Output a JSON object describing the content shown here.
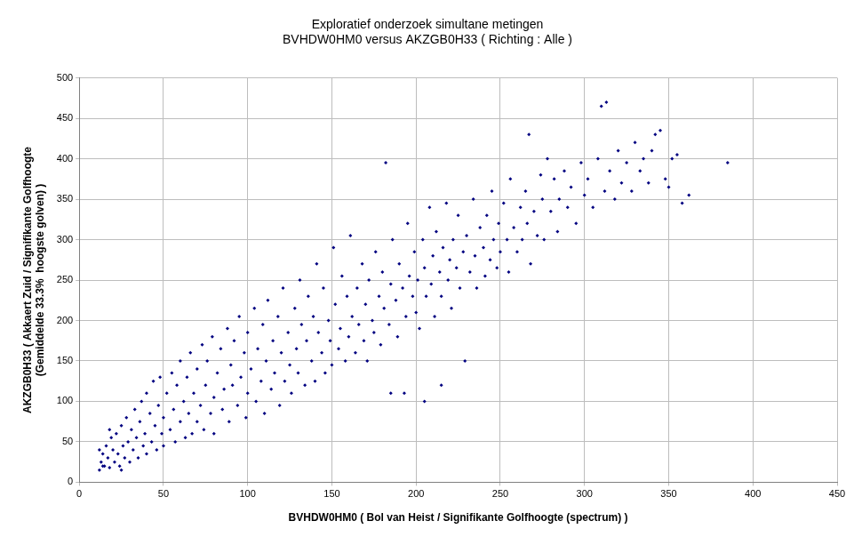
{
  "chart_data": {
    "type": "scatter",
    "title": [
      "Exploratief onderzoek simultane metingen",
      "BVHDW0HM0 versus AKZGB0H33 ( Richting : Alle )"
    ],
    "x_label": "BVHDW0HM0 ( Bol van Heist / Signifikante Golfhoogte (spectrum) )",
    "y_label": [
      "AKZGB0H33 ( Akkaert Zuid / Signifikante Golfhoogte",
      "(Gemiddelde 33.3%  hoogste golven) )"
    ],
    "x": [
      12,
      13,
      14,
      15,
      16,
      17,
      18,
      19,
      20,
      21,
      22,
      23,
      24,
      25,
      26,
      27,
      28,
      29,
      30,
      31,
      32,
      33,
      34,
      35,
      36,
      37,
      38,
      39,
      40,
      40,
      42,
      43,
      44,
      45,
      46,
      47,
      48,
      49,
      50,
      50,
      52,
      54,
      55,
      56,
      57,
      58,
      60,
      60,
      62,
      63,
      64,
      65,
      66,
      67,
      68,
      70,
      70,
      72,
      73,
      74,
      75,
      76,
      78,
      79,
      80,
      80,
      82,
      84,
      85,
      86,
      88,
      89,
      90,
      91,
      92,
      94,
      95,
      96,
      98,
      99,
      100,
      100,
      102,
      104,
      105,
      106,
      108,
      109,
      110,
      111,
      112,
      114,
      115,
      116,
      118,
      119,
      120,
      121,
      122,
      124,
      125,
      126,
      128,
      129,
      130,
      131,
      132,
      134,
      135,
      136,
      138,
      139,
      140,
      141,
      142,
      144,
      145,
      146,
      148,
      149,
      150,
      151,
      152,
      154,
      155,
      156,
      158,
      159,
      160,
      161,
      162,
      164,
      165,
      166,
      168,
      169,
      170,
      171,
      172,
      174,
      175,
      176,
      178,
      179,
      180,
      181,
      182,
      184,
      185,
      186,
      188,
      189,
      190,
      192,
      193,
      194,
      195,
      196,
      198,
      199,
      200,
      201,
      202,
      204,
      205,
      206,
      208,
      209,
      210,
      211,
      212,
      214,
      215,
      216,
      218,
      219,
      220,
      221,
      222,
      224,
      225,
      226,
      228,
      229,
      230,
      232,
      234,
      235,
      236,
      238,
      240,
      241,
      242,
      244,
      245,
      246,
      248,
      249,
      250,
      252,
      254,
      255,
      256,
      258,
      260,
      262,
      263,
      265,
      266,
      267,
      268,
      270,
      272,
      274,
      275,
      276,
      278,
      280,
      282,
      284,
      285,
      288,
      290,
      292,
      295,
      298,
      300,
      302,
      305,
      308,
      310,
      312,
      313,
      315,
      318,
      320,
      322,
      325,
      328,
      330,
      333,
      335,
      338,
      340,
      342,
      345,
      348,
      350,
      352,
      355,
      358,
      362,
      385,
      185,
      205,
      215,
      12,
      14,
      18,
      25
    ],
    "values": [
      15,
      25,
      35,
      20,
      45,
      30,
      18,
      55,
      40,
      25,
      60,
      35,
      20,
      70,
      45,
      30,
      80,
      50,
      25,
      65,
      40,
      90,
      55,
      30,
      75,
      100,
      45,
      60,
      35,
      110,
      85,
      50,
      125,
      70,
      40,
      95,
      130,
      60,
      80,
      45,
      110,
      65,
      135,
      90,
      50,
      120,
      75,
      150,
      100,
      55,
      130,
      85,
      160,
      60,
      110,
      140,
      75,
      95,
      170,
      65,
      120,
      150,
      85,
      180,
      105,
      60,
      135,
      165,
      90,
      115,
      190,
      75,
      145,
      120,
      175,
      95,
      205,
      130,
      160,
      80,
      110,
      185,
      140,
      215,
      100,
      165,
      125,
      195,
      85,
      150,
      225,
      115,
      175,
      135,
      205,
      95,
      160,
      240,
      125,
      185,
      145,
      110,
      215,
      165,
      135,
      250,
      195,
      120,
      175,
      230,
      150,
      205,
      125,
      270,
      185,
      160,
      240,
      135,
      200,
      175,
      145,
      290,
      220,
      165,
      190,
      255,
      150,
      230,
      180,
      305,
      205,
      160,
      240,
      195,
      270,
      175,
      220,
      150,
      250,
      200,
      185,
      285,
      230,
      170,
      260,
      215,
      395,
      195,
      245,
      300,
      225,
      180,
      270,
      240,
      110,
      205,
      320,
      255,
      230,
      285,
      210,
      250,
      190,
      300,
      265,
      230,
      340,
      245,
      280,
      205,
      310,
      260,
      230,
      290,
      345,
      250,
      275,
      215,
      300,
      265,
      330,
      240,
      285,
      150,
      305,
      260,
      350,
      280,
      240,
      315,
      290,
      255,
      330,
      275,
      360,
      300,
      265,
      320,
      285,
      345,
      300,
      260,
      375,
      315,
      285,
      340,
      300,
      360,
      320,
      430,
      270,
      335,
      305,
      380,
      350,
      300,
      400,
      335,
      375,
      310,
      350,
      385,
      340,
      365,
      320,
      395,
      355,
      375,
      340,
      400,
      465,
      360,
      470,
      385,
      350,
      410,
      370,
      395,
      360,
      420,
      385,
      400,
      370,
      410,
      430,
      435,
      375,
      365,
      400,
      405,
      345,
      355,
      395,
      110,
      100,
      120,
      40,
      20,
      65,
      15
    ],
    "color": "#000080",
    "marker": "diamond",
    "xlim": [
      0,
      450
    ],
    "xticks": [
      0,
      50,
      100,
      150,
      200,
      250,
      300,
      350,
      400,
      450
    ],
    "ylim": [
      0,
      500
    ],
    "yticks": [
      0,
      50,
      100,
      150,
      200,
      250,
      300,
      350,
      400,
      450,
      500
    ],
    "grid": true
  }
}
